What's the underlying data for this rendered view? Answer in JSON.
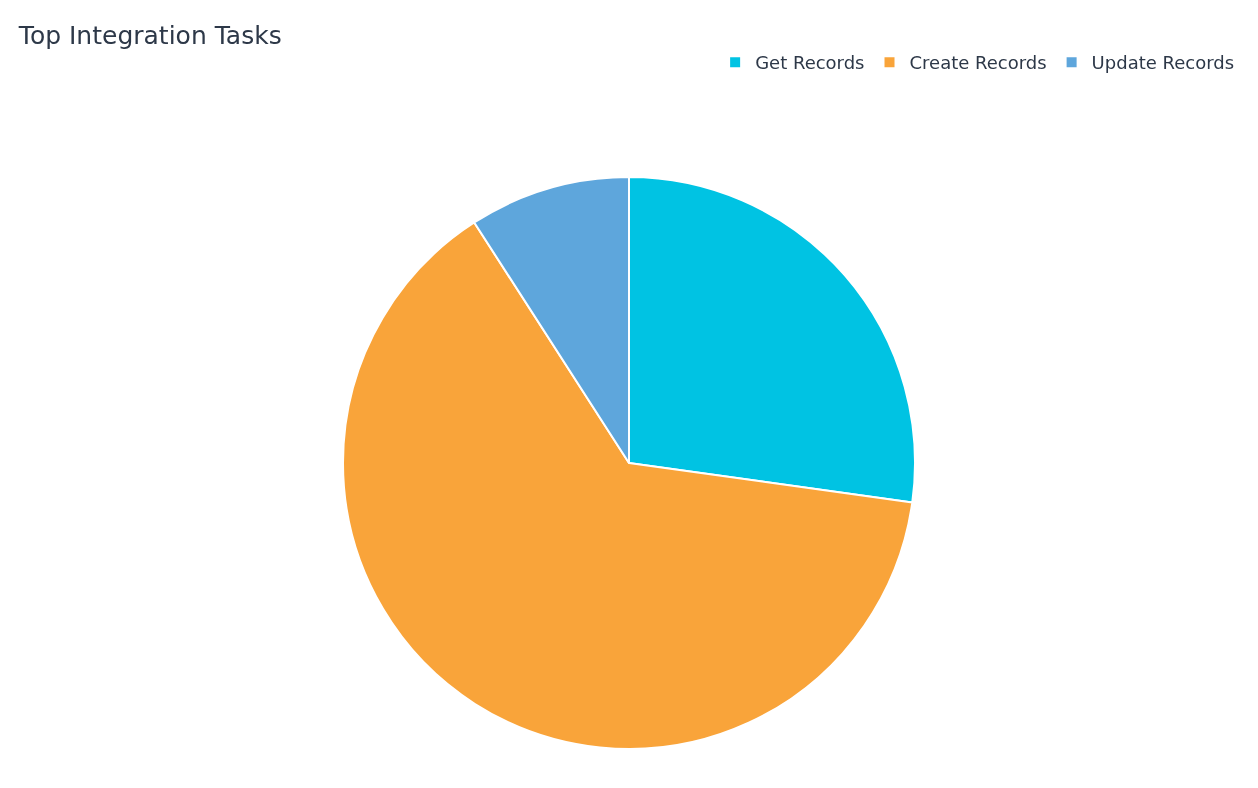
{
  "chart_data": {
    "type": "pie",
    "title": "Top Integration Tasks",
    "categories": [
      "Get Records",
      "Create Records",
      "Update Records"
    ],
    "values": [
      27.2,
      63.7,
      9.1
    ],
    "colors": [
      "#00c3e3",
      "#f9a43a",
      "#5ea6dc"
    ],
    "legend": "top right"
  }
}
